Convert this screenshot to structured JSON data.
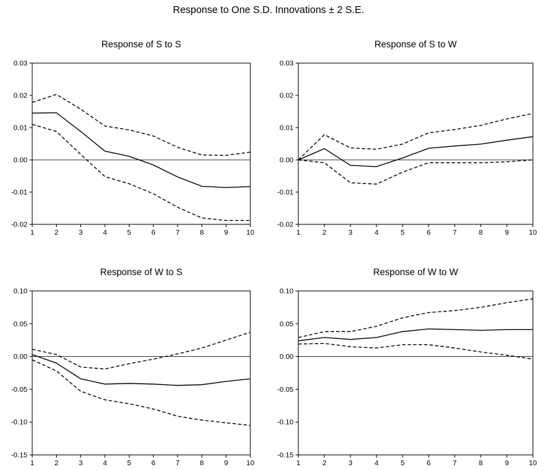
{
  "title": "Response to One S.D. Innovations ± 2 S.E.",
  "chart_data": [
    {
      "type": "line",
      "title": "Response of S to S",
      "x": [
        1,
        2,
        3,
        4,
        5,
        6,
        7,
        8,
        9,
        10
      ],
      "ylim": [
        -0.02,
        0.03
      ],
      "yticks": [
        "0.03",
        "0.02",
        "0.01",
        "0.00",
        "-0.01",
        "-0.02"
      ],
      "ytick_values": [
        0.03,
        0.02,
        0.01,
        0.0,
        -0.01,
        -0.02
      ],
      "grid": false,
      "zero_line": true,
      "series": [
        {
          "role": "response",
          "style": "solid",
          "values": [
            0.0145,
            0.0146,
            0.0088,
            0.0027,
            0.0011,
            -0.0016,
            -0.0053,
            -0.0082,
            -0.0086,
            -0.0083
          ]
        },
        {
          "role": "upper band",
          "style": "dashed",
          "values": [
            0.0178,
            0.0203,
            0.0157,
            0.0105,
            0.0093,
            0.0074,
            0.0039,
            0.0015,
            0.0014,
            0.0024
          ]
        },
        {
          "role": "lower band",
          "style": "dashed",
          "values": [
            0.011,
            0.0088,
            0.0017,
            -0.0052,
            -0.0074,
            -0.0105,
            -0.0147,
            -0.018,
            -0.0188,
            -0.0188
          ]
        }
      ]
    },
    {
      "type": "line",
      "title": "Response of S to W",
      "x": [
        1,
        2,
        3,
        4,
        5,
        6,
        7,
        8,
        9,
        10
      ],
      "ylim": [
        -0.02,
        0.03
      ],
      "yticks": [
        "0.03",
        "0.02",
        "0.01",
        "0.00",
        "-0.01",
        "-0.02"
      ],
      "ytick_values": [
        0.03,
        0.02,
        0.01,
        0.0,
        -0.01,
        -0.02
      ],
      "grid": false,
      "zero_line": true,
      "series": [
        {
          "role": "response",
          "style": "solid",
          "values": [
            0.0,
            0.0035,
            -0.0017,
            -0.0021,
            0.0006,
            0.0036,
            0.0043,
            0.0049,
            0.0061,
            0.0072
          ]
        },
        {
          "role": "upper band",
          "style": "dashed",
          "values": [
            0.0,
            0.0078,
            0.0037,
            0.0033,
            0.0049,
            0.0084,
            0.0094,
            0.0107,
            0.0127,
            0.0144
          ]
        },
        {
          "role": "lower band",
          "style": "dashed",
          "values": [
            0.0,
            -0.0009,
            -0.0071,
            -0.0075,
            -0.0038,
            -0.0009,
            -0.0009,
            -0.0009,
            -0.0006,
            0.0
          ]
        }
      ]
    },
    {
      "type": "line",
      "title": "Response of W to S",
      "x": [
        1,
        2,
        3,
        4,
        5,
        6,
        7,
        8,
        9,
        10
      ],
      "ylim": [
        -0.15,
        0.1
      ],
      "yticks": [
        "0.10",
        "0.05",
        "0.00",
        "-0.05",
        "-0.10",
        "-0.15"
      ],
      "ytick_values": [
        0.1,
        0.05,
        0.0,
        -0.05,
        -0.1,
        -0.15
      ],
      "grid": false,
      "zero_line": true,
      "series": [
        {
          "role": "response",
          "style": "solid",
          "values": [
            0.003,
            -0.01,
            -0.034,
            -0.042,
            -0.041,
            -0.042,
            -0.044,
            -0.043,
            -0.038,
            -0.034
          ]
        },
        {
          "role": "upper band",
          "style": "dashed",
          "values": [
            0.011,
            0.003,
            -0.016,
            -0.019,
            -0.011,
            -0.004,
            0.004,
            0.013,
            0.025,
            0.037
          ]
        },
        {
          "role": "lower band",
          "style": "dashed",
          "values": [
            -0.005,
            -0.022,
            -0.053,
            -0.066,
            -0.072,
            -0.08,
            -0.091,
            -0.097,
            -0.101,
            -0.105
          ]
        }
      ]
    },
    {
      "type": "line",
      "title": "Response of W to W",
      "x": [
        1,
        2,
        3,
        4,
        5,
        6,
        7,
        8,
        9,
        10
      ],
      "ylim": [
        -0.15,
        0.1
      ],
      "yticks": [
        "0.10",
        "0.05",
        "0.00",
        "-0.05",
        "-0.10",
        "-0.15"
      ],
      "ytick_values": [
        0.1,
        0.05,
        0.0,
        -0.05,
        -0.1,
        -0.15
      ],
      "grid": false,
      "zero_line": true,
      "series": [
        {
          "role": "response",
          "style": "solid",
          "values": [
            0.024,
            0.029,
            0.026,
            0.029,
            0.038,
            0.042,
            0.041,
            0.04,
            0.041,
            0.041
          ]
        },
        {
          "role": "upper band",
          "style": "dashed",
          "values": [
            0.029,
            0.038,
            0.038,
            0.046,
            0.059,
            0.067,
            0.07,
            0.075,
            0.082,
            0.088
          ]
        },
        {
          "role": "lower band",
          "style": "dashed",
          "values": [
            0.019,
            0.02,
            0.015,
            0.013,
            0.018,
            0.018,
            0.013,
            0.007,
            0.002,
            -0.004
          ]
        }
      ]
    }
  ]
}
